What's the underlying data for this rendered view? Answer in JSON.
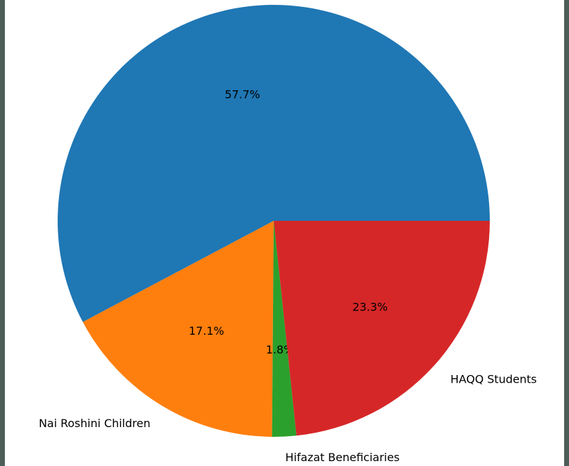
{
  "chart_data": {
    "type": "pie",
    "categories": [
      null,
      "Nai Roshini Children",
      "Hifazat Beneficiaries",
      "HAQQ Students"
    ],
    "values": [
      57.7,
      17.1,
      1.8,
      23.3
    ],
    "value_labels": [
      "57.7%",
      "17.1%",
      "1.8%",
      "23.3%"
    ],
    "colors": [
      "#1f77b4",
      "#ff7f0e",
      "#2ca02c",
      "#d62728"
    ]
  }
}
